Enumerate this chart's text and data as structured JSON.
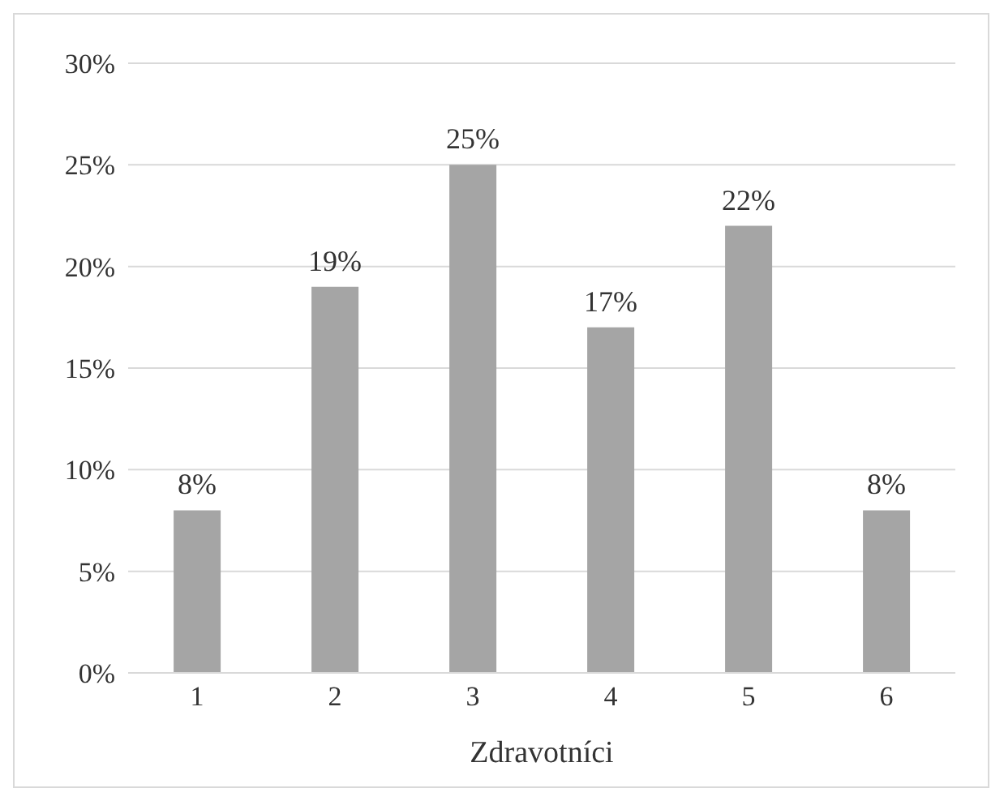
{
  "chart_data": {
    "type": "bar",
    "xlabel": "Zdravotníci",
    "categories": [
      "1",
      "2",
      "3",
      "4",
      "5",
      "6"
    ],
    "values": [
      8,
      19,
      25,
      17,
      22,
      8
    ],
    "color": "#a5a5a5",
    "ylim": [
      0,
      30
    ],
    "yticks": [
      {
        "value": 0,
        "label": "0%"
      },
      {
        "value": 5,
        "label": "5%"
      },
      {
        "value": 10,
        "label": "10%"
      },
      {
        "value": 15,
        "label": "15%"
      },
      {
        "value": 20,
        "label": "20%"
      },
      {
        "value": 25,
        "label": "25%"
      },
      {
        "value": 30,
        "label": "30%"
      }
    ],
    "value_labels": [
      "8%",
      "19%",
      "25%",
      "17%",
      "22%",
      "8%"
    ],
    "grid": "y"
  }
}
